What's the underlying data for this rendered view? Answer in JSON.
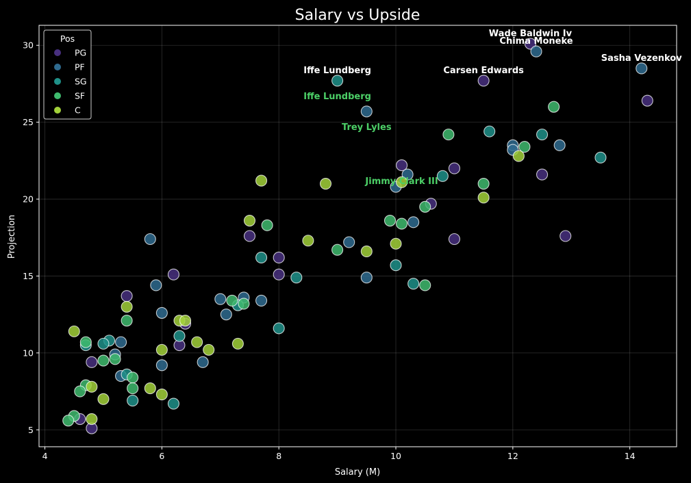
{
  "chart_data": {
    "type": "scatter",
    "title": "Salary vs Upside",
    "xlabel": "Salary (M)",
    "ylabel": "Projection",
    "xlim": [
      3.9,
      14.8
    ],
    "ylim": [
      3.9,
      31.3
    ],
    "xticks": [
      4,
      6,
      8,
      10,
      12,
      14
    ],
    "yticks": [
      5,
      10,
      15,
      20,
      25,
      30
    ],
    "grid": true,
    "legend": {
      "title": "Pos",
      "placement": "top-left"
    },
    "colors": {
      "PG": "#48307f",
      "PF": "#2f6b8f",
      "SG": "#1f9189",
      "SF": "#3fbb6e",
      "C": "#a2d13a",
      "background": "#000000",
      "green_label": "#4ccf67"
    },
    "series": [
      {
        "name": "PG",
        "points": [
          [
            12.3,
            30.1
          ],
          [
            11.5,
            27.7
          ],
          [
            14.3,
            26.4
          ],
          [
            10.1,
            22.2
          ],
          [
            11.0,
            22.0
          ],
          [
            12.5,
            21.6
          ],
          [
            10.6,
            19.7
          ],
          [
            11.0,
            17.4
          ],
          [
            12.9,
            17.6
          ],
          [
            7.5,
            17.6
          ],
          [
            8.0,
            16.2
          ],
          [
            8.0,
            15.1
          ],
          [
            6.2,
            15.1
          ],
          [
            5.4,
            13.7
          ],
          [
            6.4,
            11.9
          ],
          [
            6.3,
            10.5
          ],
          [
            4.8,
            9.4
          ],
          [
            4.6,
            5.7
          ],
          [
            4.8,
            5.1
          ]
        ]
      },
      {
        "name": "PF",
        "points": [
          [
            12.4,
            29.6
          ],
          [
            14.2,
            28.5
          ],
          [
            9.5,
            25.7
          ],
          [
            12.0,
            23.5
          ],
          [
            12.8,
            23.5
          ],
          [
            12.0,
            23.2
          ],
          [
            10.2,
            21.6
          ],
          [
            10.0,
            20.8
          ],
          [
            10.3,
            18.5
          ],
          [
            9.2,
            17.2
          ],
          [
            5.8,
            17.4
          ],
          [
            5.9,
            14.4
          ],
          [
            9.5,
            14.9
          ],
          [
            7.0,
            13.5
          ],
          [
            7.4,
            13.6
          ],
          [
            7.7,
            13.4
          ],
          [
            7.1,
            12.5
          ],
          [
            6.0,
            12.6
          ],
          [
            5.3,
            10.7
          ],
          [
            5.2,
            9.9
          ],
          [
            6.0,
            9.2
          ],
          [
            6.7,
            9.4
          ],
          [
            5.3,
            8.5
          ]
        ]
      },
      {
        "name": "SG",
        "points": [
          [
            9.0,
            27.7
          ],
          [
            11.6,
            24.4
          ],
          [
            12.5,
            24.2
          ],
          [
            13.5,
            22.7
          ],
          [
            10.8,
            21.5
          ],
          [
            7.7,
            16.2
          ],
          [
            10.0,
            15.7
          ],
          [
            8.3,
            14.9
          ],
          [
            10.3,
            14.5
          ],
          [
            7.3,
            13.1
          ],
          [
            8.0,
            11.6
          ],
          [
            6.3,
            11.1
          ],
          [
            5.1,
            10.8
          ],
          [
            4.7,
            10.5
          ],
          [
            5.0,
            10.6
          ],
          [
            5.4,
            8.6
          ],
          [
            5.5,
            6.9
          ],
          [
            6.2,
            6.7
          ]
        ]
      },
      {
        "name": "SF",
        "points": [
          [
            12.7,
            26.0
          ],
          [
            10.9,
            24.2
          ],
          [
            12.2,
            23.4
          ],
          [
            11.5,
            21.0
          ],
          [
            10.5,
            19.5
          ],
          [
            9.9,
            18.6
          ],
          [
            10.1,
            18.4
          ],
          [
            7.8,
            18.3
          ],
          [
            9.0,
            16.7
          ],
          [
            10.5,
            14.4
          ],
          [
            7.4,
            13.2
          ],
          [
            7.2,
            13.4
          ],
          [
            5.4,
            12.1
          ],
          [
            4.7,
            10.7
          ],
          [
            5.0,
            9.5
          ],
          [
            5.2,
            9.6
          ],
          [
            5.5,
            8.4
          ],
          [
            5.5,
            7.7
          ],
          [
            4.7,
            7.9
          ],
          [
            4.6,
            7.5
          ],
          [
            4.5,
            5.9
          ],
          [
            4.4,
            5.6
          ]
        ]
      },
      {
        "name": "C",
        "points": [
          [
            12.1,
            22.8
          ],
          [
            11.5,
            20.1
          ],
          [
            7.7,
            21.2
          ],
          [
            8.8,
            21.0
          ],
          [
            10.1,
            21.1
          ],
          [
            7.5,
            18.6
          ],
          [
            8.5,
            17.3
          ],
          [
            10.0,
            17.1
          ],
          [
            9.5,
            16.6
          ],
          [
            5.4,
            13.0
          ],
          [
            6.3,
            12.1
          ],
          [
            6.4,
            12.1
          ],
          [
            4.5,
            11.4
          ],
          [
            6.6,
            10.7
          ],
          [
            7.3,
            10.6
          ],
          [
            6.0,
            10.2
          ],
          [
            6.8,
            10.2
          ],
          [
            4.8,
            7.8
          ],
          [
            5.8,
            7.7
          ],
          [
            6.0,
            7.3
          ],
          [
            5.0,
            7.0
          ],
          [
            4.8,
            5.7
          ]
        ]
      }
    ],
    "annotations": [
      {
        "text": "Wade Baldwin Iv",
        "x": 12.3,
        "y": 30.1,
        "color": "#ffffff"
      },
      {
        "text": "Chima Moneke",
        "x": 12.4,
        "y": 29.6,
        "color": "#ffffff"
      },
      {
        "text": "Sasha Vezenkov",
        "x": 14.2,
        "y": 28.5,
        "color": "#ffffff"
      },
      {
        "text": "Iffe Lundberg",
        "x": 9.0,
        "y": 27.7,
        "color": "#ffffff"
      },
      {
        "text": "Carsen Edwards",
        "x": 11.5,
        "y": 27.7,
        "color": "#ffffff"
      },
      {
        "text": "Iffe Lundberg",
        "x": 9.0,
        "y": 26.0,
        "color": "#4ccf67"
      },
      {
        "text": "Trey Lyles",
        "x": 9.5,
        "y": 24.0,
        "color": "#4ccf67"
      },
      {
        "text": "Jimmy Clark III",
        "x": 10.1,
        "y": 20.5,
        "color": "#4ccf67"
      }
    ]
  }
}
